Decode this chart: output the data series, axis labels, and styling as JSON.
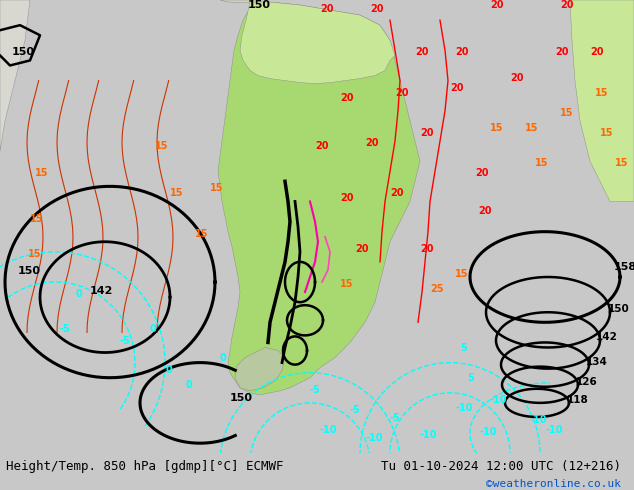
{
  "title_left": "Height/Temp. 850 hPa [gdmp][°C] ECMWF",
  "title_right": "Tu 01-10-2024 12:00 UTC (12+216)",
  "credit": "©weatheronline.co.uk",
  "bg_color": "#c8c8c8",
  "bottom_bar_color": "#ffffff",
  "fig_width": 6.34,
  "fig_height": 4.9,
  "dpi": 100,
  "font_size_bottom": 9,
  "credit_color": "#0055cc",
  "text_color": "#000000",
  "map_ocean_color": "#d2d2d2",
  "map_land_green": "#a8d870",
  "map_land_light_green": "#c8e898"
}
